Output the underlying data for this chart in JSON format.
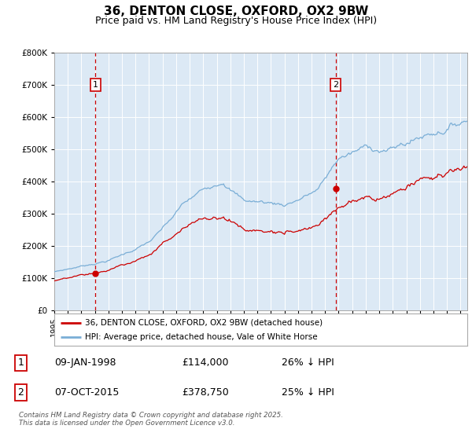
{
  "title": "36, DENTON CLOSE, OXFORD, OX2 9BW",
  "subtitle": "Price paid vs. HM Land Registry's House Price Index (HPI)",
  "title_fontsize": 11,
  "subtitle_fontsize": 9,
  "background_color": "#ffffff",
  "plot_bg_color": "#dce9f5",
  "red_color": "#cc0000",
  "blue_color": "#7aaed6",
  "sale1_date_num": 1998.04,
  "sale1_price": 114000,
  "sale2_date_num": 2015.77,
  "sale2_price": 378750,
  "xmin": 1995.0,
  "xmax": 2025.5,
  "ymin": 0,
  "ymax": 800000,
  "legend_label_red": "36, DENTON CLOSE, OXFORD, OX2 9BW (detached house)",
  "legend_label_blue": "HPI: Average price, detached house, Vale of White Horse",
  "footnote": "Contains HM Land Registry data © Crown copyright and database right 2025.\nThis data is licensed under the Open Government Licence v3.0.",
  "table_rows": [
    {
      "num": "1",
      "date": "09-JAN-1998",
      "price": "£114,000",
      "change": "26% ↓ HPI"
    },
    {
      "num": "2",
      "date": "07-OCT-2015",
      "price": "£378,750",
      "change": "25% ↓ HPI"
    }
  ]
}
